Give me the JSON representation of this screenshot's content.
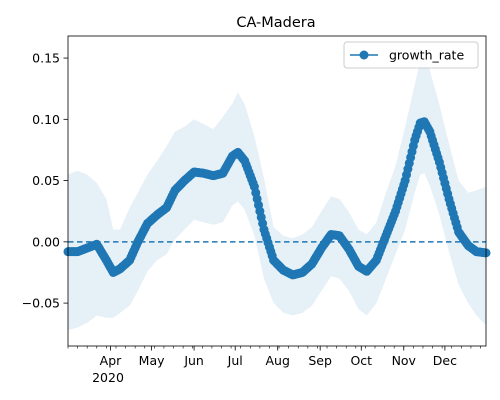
{
  "chart_data": {
    "type": "line",
    "title": "CA-Madera",
    "xlabel": "",
    "ylabel": "",
    "year_label": "2020",
    "x_start": "2020-03-01",
    "x_end": "2020-12-31",
    "ylim": [
      -0.085,
      0.168
    ],
    "zero_line": 0.0,
    "legend": {
      "placement": "top-right",
      "entries": [
        "growth_rate"
      ]
    },
    "colors": {
      "line": "#1f77b4",
      "band": "#1f77b4",
      "zero_line": "#1f77b4"
    },
    "x_ticks": [
      {
        "label": "Apr",
        "date": "2020-04-01"
      },
      {
        "label": "May",
        "date": "2020-05-01"
      },
      {
        "label": "Jun",
        "date": "2020-06-01"
      },
      {
        "label": "Jul",
        "date": "2020-07-01"
      },
      {
        "label": "Aug",
        "date": "2020-08-01"
      },
      {
        "label": "Sep",
        "date": "2020-09-01"
      },
      {
        "label": "Oct",
        "date": "2020-10-01"
      },
      {
        "label": "Nov",
        "date": "2020-11-01"
      },
      {
        "label": "Dec",
        "date": "2020-12-01"
      }
    ],
    "y_ticks": [
      {
        "label": "0.15",
        "value": 0.15
      },
      {
        "label": "0.10",
        "value": 0.1
      },
      {
        "label": "0.05",
        "value": 0.05
      },
      {
        "label": "0.00",
        "value": 0.0
      },
      {
        "label": "−0.05",
        "value": -0.05
      }
    ],
    "series": [
      {
        "name": "growth_rate",
        "points": [
          [
            "2020-03-01",
            -0.008
          ],
          [
            "2020-03-08",
            -0.008
          ],
          [
            "2020-03-15",
            -0.005
          ],
          [
            "2020-03-22",
            -0.002
          ],
          [
            "2020-03-29",
            -0.015
          ],
          [
            "2020-04-03",
            -0.025
          ],
          [
            "2020-04-08",
            -0.022
          ],
          [
            "2020-04-15",
            -0.015
          ],
          [
            "2020-04-21",
            0.0
          ],
          [
            "2020-04-28",
            0.015
          ],
          [
            "2020-05-05",
            0.022
          ],
          [
            "2020-05-12",
            0.028
          ],
          [
            "2020-05-18",
            0.042
          ],
          [
            "2020-05-25",
            0.05
          ],
          [
            "2020-06-01",
            0.057
          ],
          [
            "2020-06-08",
            0.056
          ],
          [
            "2020-06-15",
            0.054
          ],
          [
            "2020-06-22",
            0.056
          ],
          [
            "2020-06-29",
            0.07
          ],
          [
            "2020-07-03",
            0.073
          ],
          [
            "2020-07-08",
            0.066
          ],
          [
            "2020-07-15",
            0.045
          ],
          [
            "2020-07-22",
            0.01
          ],
          [
            "2020-07-29",
            -0.015
          ],
          [
            "2020-08-05",
            -0.023
          ],
          [
            "2020-08-12",
            -0.027
          ],
          [
            "2020-08-19",
            -0.025
          ],
          [
            "2020-08-26",
            -0.018
          ],
          [
            "2020-09-02",
            -0.005
          ],
          [
            "2020-09-09",
            0.006
          ],
          [
            "2020-09-15",
            0.005
          ],
          [
            "2020-09-22",
            -0.006
          ],
          [
            "2020-09-29",
            -0.02
          ],
          [
            "2020-10-05",
            -0.024
          ],
          [
            "2020-10-12",
            -0.015
          ],
          [
            "2020-10-19",
            0.005
          ],
          [
            "2020-10-26",
            0.025
          ],
          [
            "2020-11-02",
            0.05
          ],
          [
            "2020-11-09",
            0.083
          ],
          [
            "2020-11-13",
            0.097
          ],
          [
            "2020-11-16",
            0.098
          ],
          [
            "2020-11-20",
            0.09
          ],
          [
            "2020-11-27",
            0.065
          ],
          [
            "2020-12-04",
            0.035
          ],
          [
            "2020-12-11",
            0.008
          ],
          [
            "2020-12-18",
            -0.003
          ],
          [
            "2020-12-24",
            -0.008
          ],
          [
            "2020-12-31",
            -0.009
          ]
        ],
        "band_upper": [
          [
            "2020-03-01",
            0.055
          ],
          [
            "2020-03-08",
            0.058
          ],
          [
            "2020-03-15",
            0.055
          ],
          [
            "2020-03-22",
            0.048
          ],
          [
            "2020-03-29",
            0.035
          ],
          [
            "2020-04-03",
            0.01
          ],
          [
            "2020-04-08",
            0.01
          ],
          [
            "2020-04-15",
            0.028
          ],
          [
            "2020-04-21",
            0.04
          ],
          [
            "2020-04-28",
            0.055
          ],
          [
            "2020-05-05",
            0.066
          ],
          [
            "2020-05-12",
            0.078
          ],
          [
            "2020-05-18",
            0.09
          ],
          [
            "2020-05-25",
            0.094
          ],
          [
            "2020-06-01",
            0.1
          ],
          [
            "2020-06-08",
            0.096
          ],
          [
            "2020-06-15",
            0.092
          ],
          [
            "2020-06-22",
            0.102
          ],
          [
            "2020-06-29",
            0.113
          ],
          [
            "2020-07-03",
            0.122
          ],
          [
            "2020-07-08",
            0.112
          ],
          [
            "2020-07-15",
            0.086
          ],
          [
            "2020-07-22",
            0.052
          ],
          [
            "2020-07-29",
            0.012
          ],
          [
            "2020-08-05",
            0.005
          ],
          [
            "2020-08-12",
            0.003
          ],
          [
            "2020-08-19",
            0.006
          ],
          [
            "2020-08-26",
            0.012
          ],
          [
            "2020-09-02",
            0.025
          ],
          [
            "2020-09-09",
            0.037
          ],
          [
            "2020-09-15",
            0.035
          ],
          [
            "2020-09-22",
            0.024
          ],
          [
            "2020-09-29",
            0.01
          ],
          [
            "2020-10-05",
            0.006
          ],
          [
            "2020-10-12",
            0.016
          ],
          [
            "2020-10-19",
            0.04
          ],
          [
            "2020-10-26",
            0.062
          ],
          [
            "2020-11-02",
            0.094
          ],
          [
            "2020-11-09",
            0.128
          ],
          [
            "2020-11-13",
            0.148
          ],
          [
            "2020-11-16",
            0.152
          ],
          [
            "2020-11-20",
            0.14
          ],
          [
            "2020-11-27",
            0.112
          ],
          [
            "2020-12-04",
            0.08
          ],
          [
            "2020-12-11",
            0.05
          ],
          [
            "2020-12-18",
            0.04
          ],
          [
            "2020-12-24",
            0.042
          ],
          [
            "2020-12-31",
            0.045
          ]
        ],
        "band_lower": [
          [
            "2020-03-01",
            -0.072
          ],
          [
            "2020-03-08",
            -0.07
          ],
          [
            "2020-03-15",
            -0.066
          ],
          [
            "2020-03-22",
            -0.06
          ],
          [
            "2020-03-29",
            -0.062
          ],
          [
            "2020-04-03",
            -0.062
          ],
          [
            "2020-04-08",
            -0.058
          ],
          [
            "2020-04-15",
            -0.052
          ],
          [
            "2020-04-21",
            -0.04
          ],
          [
            "2020-04-28",
            -0.024
          ],
          [
            "2020-05-05",
            -0.015
          ],
          [
            "2020-05-12",
            -0.01
          ],
          [
            "2020-05-18",
            0.002
          ],
          [
            "2020-05-25",
            0.01
          ],
          [
            "2020-06-01",
            0.018
          ],
          [
            "2020-06-08",
            0.016
          ],
          [
            "2020-06-15",
            0.014
          ],
          [
            "2020-06-22",
            0.016
          ],
          [
            "2020-06-29",
            0.03
          ],
          [
            "2020-07-03",
            0.033
          ],
          [
            "2020-07-08",
            0.026
          ],
          [
            "2020-07-15",
            0.005
          ],
          [
            "2020-07-22",
            -0.03
          ],
          [
            "2020-07-29",
            -0.05
          ],
          [
            "2020-08-05",
            -0.058
          ],
          [
            "2020-08-12",
            -0.06
          ],
          [
            "2020-08-19",
            -0.058
          ],
          [
            "2020-08-26",
            -0.052
          ],
          [
            "2020-09-02",
            -0.04
          ],
          [
            "2020-09-09",
            -0.028
          ],
          [
            "2020-09-15",
            -0.03
          ],
          [
            "2020-09-22",
            -0.04
          ],
          [
            "2020-09-29",
            -0.055
          ],
          [
            "2020-10-05",
            -0.06
          ],
          [
            "2020-10-12",
            -0.05
          ],
          [
            "2020-10-19",
            -0.03
          ],
          [
            "2020-10-26",
            -0.01
          ],
          [
            "2020-11-02",
            0.01
          ],
          [
            "2020-11-09",
            0.04
          ],
          [
            "2020-11-13",
            0.055
          ],
          [
            "2020-11-16",
            0.056
          ],
          [
            "2020-11-20",
            0.046
          ],
          [
            "2020-11-27",
            0.022
          ],
          [
            "2020-12-04",
            -0.008
          ],
          [
            "2020-12-11",
            -0.035
          ],
          [
            "2020-12-18",
            -0.05
          ],
          [
            "2020-12-24",
            -0.06
          ],
          [
            "2020-12-31",
            -0.068
          ]
        ]
      }
    ]
  }
}
